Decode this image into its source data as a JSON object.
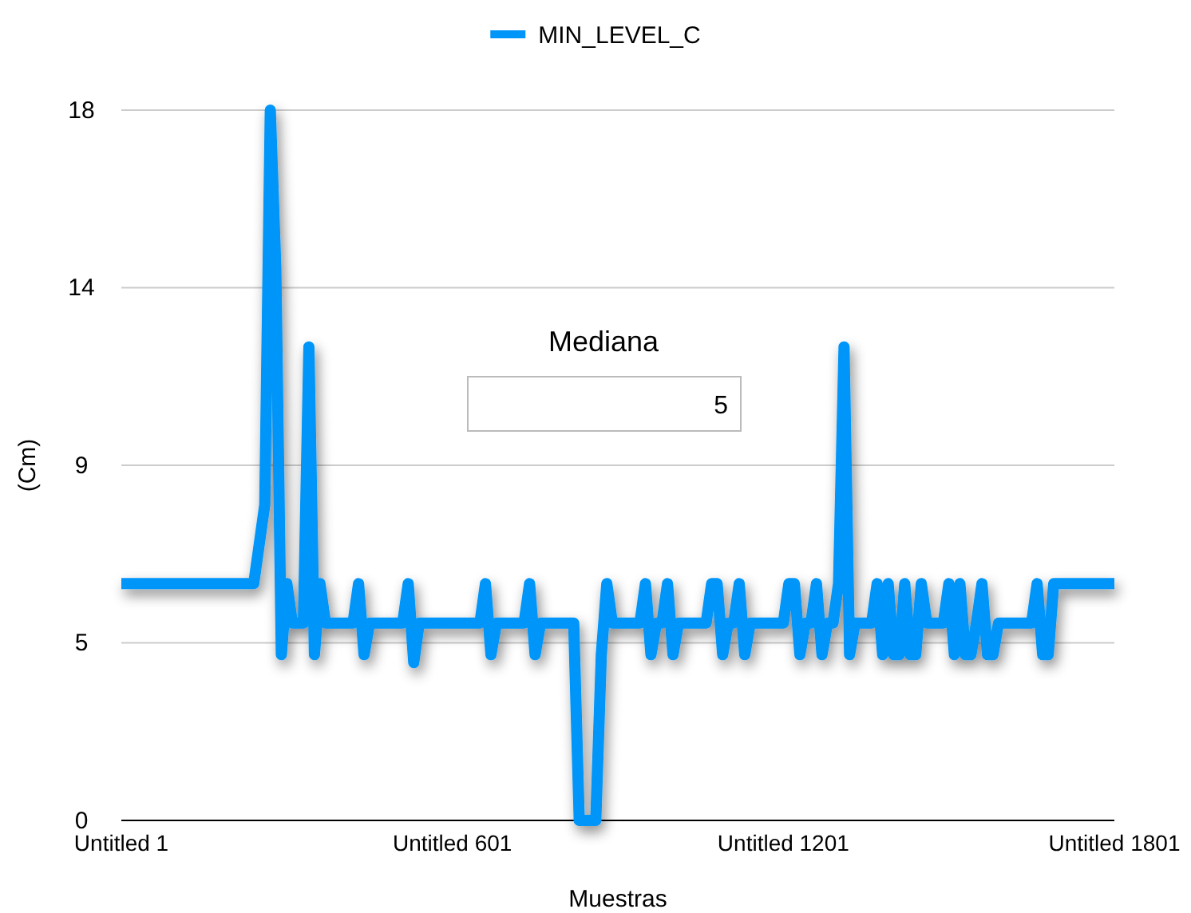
{
  "chart_data": {
    "type": "line",
    "xlabel": "Muestras",
    "ylabel": "(Cm)",
    "legend": "top",
    "grid": "y",
    "ylim": [
      0,
      18
    ],
    "yticks": [
      0,
      {
        "value": 4.5,
        "label": "5"
      },
      9,
      {
        "value": 13.5,
        "label": "14"
      },
      18
    ],
    "annotations": [
      "Mediana",
      "5"
    ],
    "categories": [
      "Untitled 1",
      null,
      null,
      null,
      null,
      null,
      null,
      null,
      null,
      null,
      null,
      null,
      null,
      null,
      null,
      null,
      null,
      null,
      null,
      null,
      null,
      null,
      null,
      null,
      null,
      null,
      null,
      null,
      null,
      null,
      null,
      null,
      null,
      null,
      null,
      null,
      null,
      null,
      null,
      null,
      null,
      null,
      null,
      null,
      null,
      null,
      null,
      null,
      null,
      null,
      null,
      null,
      null,
      null,
      null,
      null,
      null,
      null,
      null,
      null,
      "Untitled 601",
      null,
      null,
      null,
      null,
      null,
      null,
      null,
      null,
      null,
      null,
      null,
      null,
      null,
      null,
      null,
      null,
      null,
      null,
      null,
      null,
      null,
      null,
      null,
      null,
      null,
      null,
      null,
      null,
      null,
      null,
      null,
      null,
      null,
      null,
      null,
      null,
      null,
      null,
      null,
      null,
      null,
      null,
      null,
      null,
      null,
      null,
      null,
      null,
      null,
      null,
      null,
      null,
      null,
      null,
      null,
      null,
      null,
      null,
      null,
      "Untitled 1201",
      null,
      null,
      null,
      null,
      null,
      null,
      null,
      null,
      null,
      null,
      null,
      null,
      null,
      null,
      null,
      null,
      null,
      null,
      null,
      null,
      null,
      null,
      null,
      null,
      null,
      null,
      null,
      null,
      null,
      null,
      null,
      null,
      null,
      null,
      null,
      null,
      null,
      null,
      null,
      null,
      null,
      null,
      null,
      null,
      null,
      null,
      null,
      null,
      null,
      null,
      null,
      null,
      null,
      null,
      null,
      null,
      null,
      null,
      null,
      "Untitled 1801"
    ],
    "series": [
      {
        "name": "MIN_LEVEL_C",
        "color": "#0095f8",
        "values": [
          6,
          6,
          6,
          6,
          6,
          6,
          6,
          6,
          6,
          6,
          6,
          6,
          6,
          6,
          6,
          6,
          6,
          6,
          6,
          6,
          6,
          6,
          6,
          6,
          6,
          7,
          8,
          18,
          14,
          4.2,
          6,
          5,
          5,
          5,
          12,
          4.2,
          6,
          5,
          5,
          5,
          5,
          5,
          5,
          6,
          4.2,
          5,
          5,
          5,
          5,
          5,
          5,
          5,
          6,
          4,
          5,
          5,
          5,
          5,
          5,
          5,
          5,
          5,
          5,
          5,
          5,
          5,
          6,
          4.2,
          5,
          5,
          5,
          5,
          5,
          5,
          6,
          4.2,
          5,
          5,
          5,
          5,
          5,
          5,
          5,
          0,
          0,
          0,
          0,
          4.2,
          6,
          5,
          5,
          5,
          5,
          5,
          5,
          6,
          4.2,
          5,
          5,
          6,
          4.2,
          5,
          5,
          5,
          5,
          5,
          5,
          6,
          6,
          4.2,
          5,
          5,
          6,
          4.2,
          5,
          5,
          5,
          5,
          5,
          5,
          5,
          6,
          6,
          4.2,
          5,
          5,
          6,
          4.2,
          5,
          5,
          6,
          12,
          4.2,
          5,
          5,
          5,
          5,
          6,
          4.2,
          6,
          4.2,
          4.2,
          6,
          4.2,
          4.2,
          6,
          5,
          5,
          5,
          5,
          6,
          4.2,
          6,
          4.2,
          4.2,
          5,
          6,
          4.2,
          4.2,
          5,
          5,
          5,
          5,
          5,
          5,
          5,
          6,
          4.2,
          4.2,
          6,
          6,
          6,
          6,
          6,
          6,
          6,
          6,
          6,
          6,
          6,
          6
        ]
      }
    ]
  }
}
